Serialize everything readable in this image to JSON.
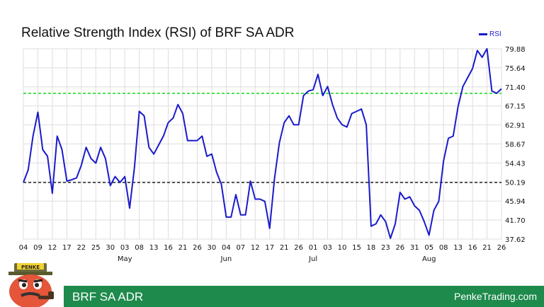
{
  "chart_data": {
    "type": "line",
    "title": "Relative Strength Index (RSI) of BRF SA ADR",
    "series": [
      {
        "name": "RSI",
        "color": "#1a1acc",
        "values": [
          50.2,
          53.0,
          60.5,
          65.8,
          57.5,
          56.0,
          47.8,
          60.5,
          57.5,
          50.5,
          50.8,
          51.2,
          54.0,
          58.0,
          55.5,
          54.5,
          58.0,
          55.5,
          49.5,
          51.5,
          50.2,
          51.5,
          44.5,
          53.5,
          66.0,
          65.0,
          58.0,
          56.5,
          58.5,
          60.5,
          63.5,
          64.5,
          67.5,
          65.5,
          59.5,
          59.5,
          59.5,
          60.5,
          56.0,
          56.5,
          52.5,
          49.8,
          42.5,
          42.5,
          47.5,
          43.0,
          43.0,
          50.5,
          46.5,
          46.5,
          46.0,
          40.0,
          51.0,
          59.0,
          63.5,
          65.0,
          63.0,
          63.0,
          69.5,
          70.5,
          70.8,
          74.2,
          69.5,
          71.5,
          67.5,
          64.5,
          63.0,
          62.5,
          65.5,
          66.0,
          66.5,
          63.0,
          40.5,
          41.0,
          43.0,
          41.5,
          37.8,
          41.0,
          48.0,
          46.5,
          47.0,
          45.0,
          44.0,
          41.5,
          38.5,
          44.0,
          46.0,
          55.0,
          60.0,
          60.5,
          67.0,
          71.5,
          73.5,
          75.5,
          79.5,
          78.0,
          79.9,
          70.5,
          70.0,
          71.0
        ]
      }
    ],
    "x_tick_labels": [
      "04",
      "09",
      "12",
      "17",
      "22",
      "25",
      "30",
      "03",
      "08",
      "13",
      "16",
      "21",
      "26",
      "30",
      "04",
      "07",
      "12",
      "17",
      "21",
      "26",
      "01",
      "03",
      "10",
      "15",
      "18",
      "23",
      "26",
      "31",
      "05",
      "08",
      "13",
      "16",
      "21",
      "26"
    ],
    "month_labels": [
      "May",
      "Jun",
      "Jul",
      "Aug"
    ],
    "y_tick_labels": [
      "79.88",
      "75.64",
      "71.40",
      "67.15",
      "62.91",
      "58.67",
      "54.43",
      "50.19",
      "45.94",
      "41.70",
      "37.62"
    ],
    "ylim": [
      37.62,
      79.88
    ],
    "reference_lines": [
      {
        "value": 70,
        "color": "#22dd22",
        "style": "dashed"
      },
      {
        "value": 50.19,
        "color": "#333333",
        "style": "dashed"
      }
    ],
    "grid": true,
    "legend_position": "top-right"
  },
  "footer": {
    "left_text": "BRF SA ADR",
    "right_text": "PenkeTrading.com",
    "bar_color": "#1e8a4c"
  },
  "mascot": {
    "hat_text": "PENKE"
  }
}
